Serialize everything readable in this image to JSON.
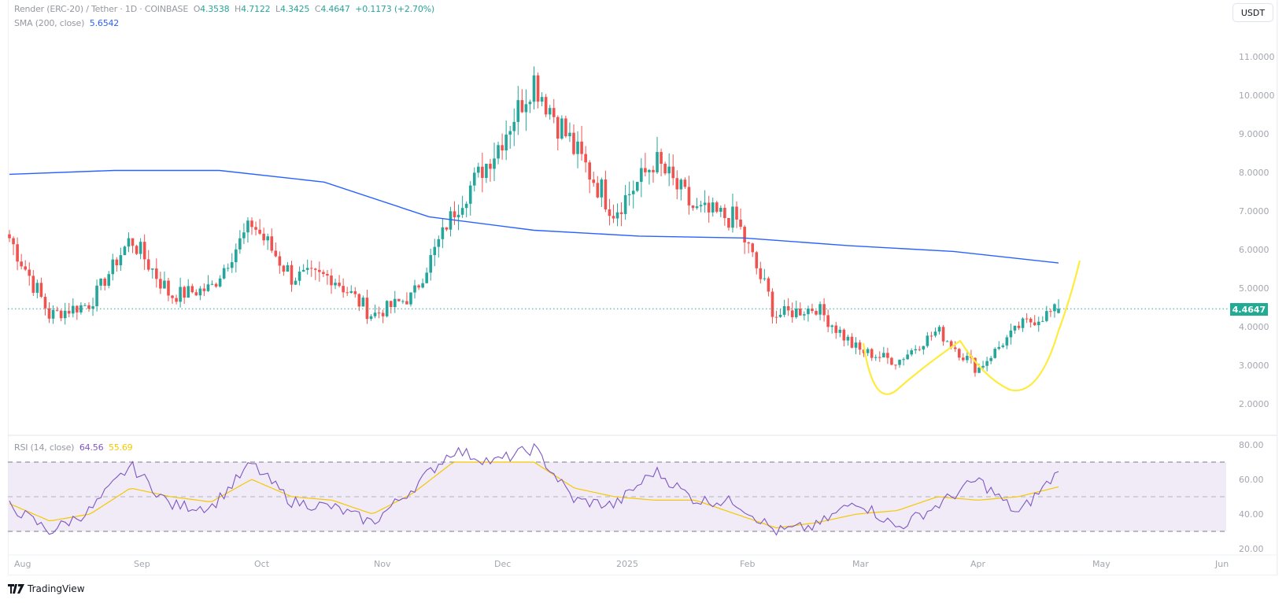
{
  "header": {
    "symbol": "Render (ERC-20) / Tether · 1D · COINBASE",
    "open_label": "O",
    "open": "4.3538",
    "high_label": "H",
    "high": "4.7122",
    "low_label": "L",
    "low": "4.3425",
    "close_label": "C",
    "close": "4.4647",
    "change": "+0.1173 (+2.70%)",
    "sma_label": "SMA (200, close)",
    "sma_value": "5.6542",
    "currency_button": "USDT"
  },
  "rsi": {
    "label": "RSI (14, close)",
    "value": "64.56",
    "ma_value": "55.69"
  },
  "price_axis": [
    "11.0000",
    "10.0000",
    "9.0000",
    "8.0000",
    "7.0000",
    "6.0000",
    "5.0000",
    "4.0000",
    "3.0000",
    "2.0000"
  ],
  "rsi_axis": [
    "80.00",
    "60.00",
    "40.00",
    "20.00"
  ],
  "current_price_label": "4.4647",
  "time_axis": [
    "Aug",
    "Sep",
    "Oct",
    "Nov",
    "Dec",
    "2025",
    "Feb",
    "Mar",
    "Apr",
    "May",
    "Jun"
  ],
  "branding": "TradingView",
  "colors": {
    "up": "#26a69a",
    "down": "#ef5350",
    "sma": "#2962ff",
    "rsi": "#7e57c2",
    "rsi_ma": "#f5c800",
    "drawing": "#ffeb3b",
    "rsi_band": "#ede7f6"
  },
  "chart_data": [
    {
      "type": "candlestick",
      "title": "Render (ERC-20) / Tether · 1D · COINBASE",
      "ylabel": "USDT",
      "ylim": [
        1.5,
        12
      ],
      "x_ticks": [
        "Aug",
        "Sep",
        "Oct",
        "Nov",
        "Dec",
        "2025",
        "Feb",
        "Mar",
        "Apr",
        "May",
        "Jun"
      ],
      "last_ohlc": {
        "open": 4.3538,
        "high": 4.7122,
        "low": 4.3425,
        "close": 4.4647,
        "change": 0.1173,
        "change_pct": 2.7
      },
      "approx_close_path": [
        {
          "date": "late Jul",
          "close": 6.3
        },
        {
          "date": "early Aug",
          "close": 4.3
        },
        {
          "date": "mid Aug",
          "close": 4.6
        },
        {
          "date": "late Aug",
          "close": 6.3
        },
        {
          "date": "early Sep",
          "close": 4.8
        },
        {
          "date": "mid Sep",
          "close": 5.0
        },
        {
          "date": "late Sep",
          "close": 6.7
        },
        {
          "date": "early Oct",
          "close": 5.3
        },
        {
          "date": "mid Oct",
          "close": 5.3
        },
        {
          "date": "late Oct",
          "close": 4.3
        },
        {
          "date": "early Nov",
          "close": 4.8
        },
        {
          "date": "mid Nov",
          "close": 7.0
        },
        {
          "date": "late Nov",
          "close": 8.5
        },
        {
          "date": "early Dec",
          "close": 10.4
        },
        {
          "date": "mid Dec",
          "close": 8.6
        },
        {
          "date": "late Dec",
          "close": 7.0
        },
        {
          "date": "early Jan",
          "close": 8.3
        },
        {
          "date": "mid Jan",
          "close": 7.0
        },
        {
          "date": "late Jan",
          "close": 6.8
        },
        {
          "date": "early Feb",
          "close": 4.3
        },
        {
          "date": "mid Feb",
          "close": 4.5
        },
        {
          "date": "early Mar",
          "close": 3.4
        },
        {
          "date": "mid Mar",
          "close": 3.1
        },
        {
          "date": "late Mar",
          "close": 3.9
        },
        {
          "date": "early Apr",
          "close": 2.9
        },
        {
          "date": "mid Apr",
          "close": 4.0
        },
        {
          "date": "late Apr",
          "close": 4.46
        }
      ],
      "series": [
        {
          "name": "SMA (200, close)",
          "last": 5.6542,
          "approx_path": [
            7.95,
            8.05,
            8.05,
            7.75,
            6.85,
            6.5,
            6.35,
            6.3,
            6.1,
            5.95,
            5.65
          ]
        }
      ],
      "annotations": [
        "Yellow hand-drawn cup-and-handle / double-bottom curve (Mar–Apr lows ~2.4, rising through current price)"
      ],
      "current_price_line": 4.4647
    },
    {
      "type": "line",
      "title": "RSI (14, close)",
      "ylim": [
        20,
        80
      ],
      "y_ticks": [
        80,
        60,
        40,
        20
      ],
      "bands": {
        "upper": 70,
        "middle": 50,
        "lower": 30
      },
      "series": [
        {
          "name": "RSI",
          "last": 64.56,
          "approx_path": [
            45,
            30,
            42,
            68,
            45,
            44,
            69,
            47,
            44,
            35,
            55,
            77,
            70,
            78,
            48,
            45,
            65,
            48,
            47,
            30,
            33,
            48,
            32,
            45,
            60,
            40,
            64.56
          ]
        },
        {
          "name": "RSI MA",
          "last": 55.69,
          "approx_path": [
            46,
            36,
            40,
            55,
            50,
            47,
            60,
            50,
            48,
            40,
            52,
            70,
            70,
            70,
            55,
            50,
            48,
            48,
            40,
            32,
            35,
            40,
            42,
            50,
            48,
            50,
            55.69
          ]
        }
      ]
    }
  ]
}
